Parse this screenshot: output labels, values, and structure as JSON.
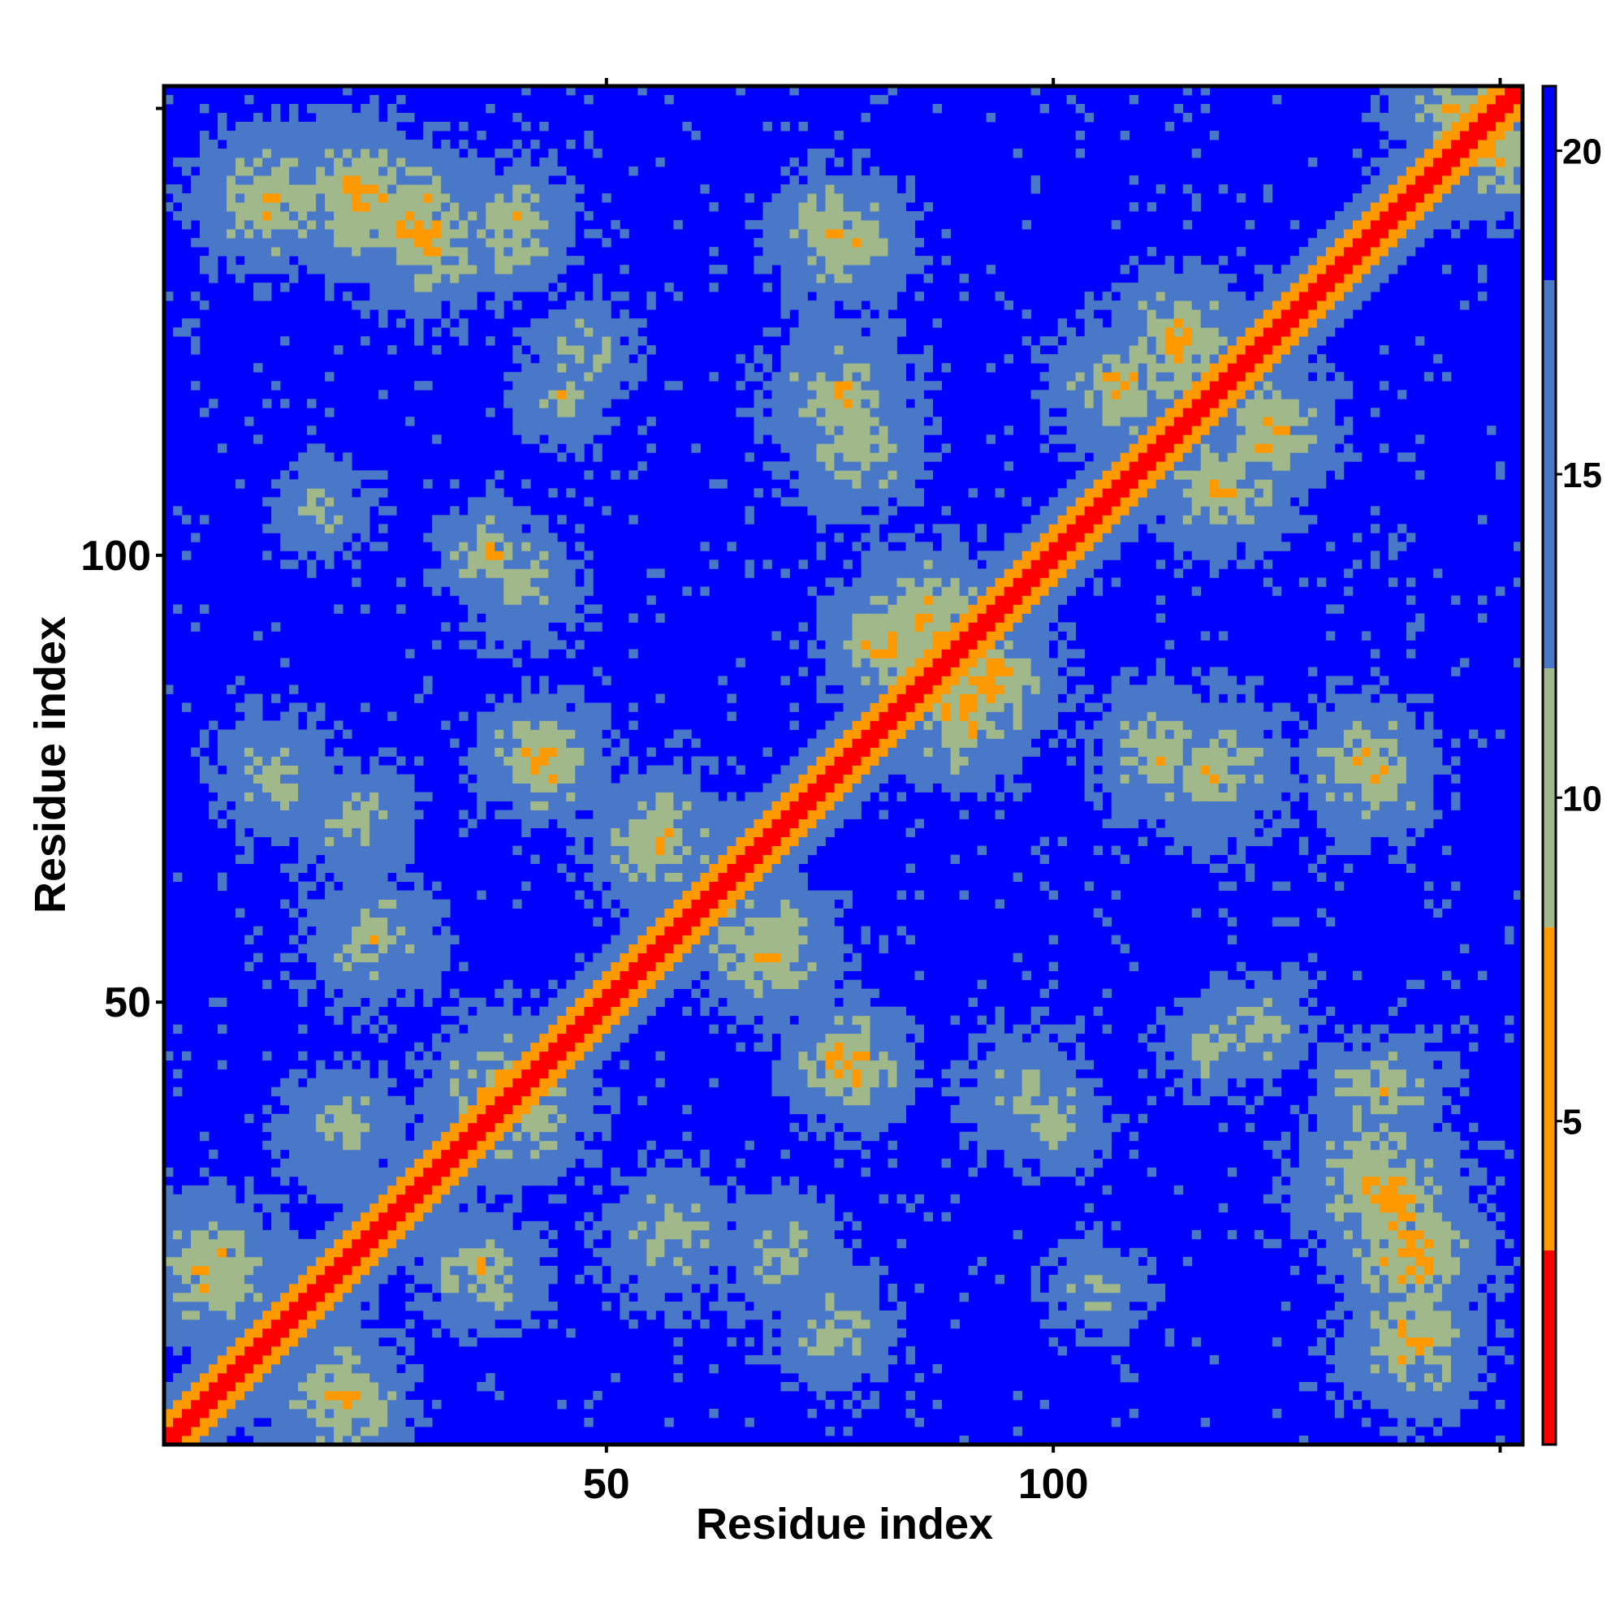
{
  "chart_data": {
    "type": "heatmap",
    "title": "",
    "xlabel": "Residue index",
    "ylabel": "Residue index",
    "n_residues": 152,
    "xlim": [
      1,
      152
    ],
    "ylim": [
      1,
      152
    ],
    "x_ticks": [
      50,
      100
    ],
    "y_ticks": [
      50,
      100
    ],
    "colorbar": {
      "ticks": [
        5,
        10,
        15,
        20
      ],
      "range": [
        0,
        21
      ],
      "cutoff": 8,
      "colors": {
        "near": "#ff0000",
        "mid": "#ff9900",
        "far_low": "#a0b88a",
        "far_high": "#4a78c8",
        "background": "#0000ff"
      }
    },
    "description_values": {
      "diagonal_distance": 0,
      "background_distance": 21
    },
    "contact_blobs": [
      {
        "i": 12,
        "j": 140,
        "r": 9,
        "d": 9
      },
      {
        "i": 28,
        "j": 138,
        "r": 8,
        "d": 8
      },
      {
        "i": 40,
        "j": 138,
        "r": 7,
        "d": 10
      },
      {
        "i": 47,
        "j": 123,
        "r": 8,
        "d": 11
      },
      {
        "i": 37,
        "j": 100,
        "r": 7,
        "d": 10
      },
      {
        "i": 22,
        "j": 70,
        "r": 9,
        "d": 11
      },
      {
        "i": 42,
        "j": 78,
        "r": 7,
        "d": 9
      },
      {
        "i": 6,
        "j": 20,
        "r": 9,
        "d": 9
      },
      {
        "i": 20,
        "j": 36,
        "r": 8,
        "d": 10
      },
      {
        "i": 38,
        "j": 40,
        "r": 9,
        "d": 9
      },
      {
        "i": 57,
        "j": 24,
        "r": 10,
        "d": 11
      },
      {
        "i": 75,
        "j": 13,
        "r": 9,
        "d": 11
      },
      {
        "i": 68,
        "j": 56,
        "r": 9,
        "d": 9
      },
      {
        "i": 77,
        "j": 43,
        "r": 7,
        "d": 8
      },
      {
        "i": 78,
        "j": 112,
        "r": 9,
        "d": 10
      },
      {
        "i": 77,
        "j": 135,
        "r": 8,
        "d": 9
      },
      {
        "i": 82,
        "j": 90,
        "r": 8,
        "d": 8
      },
      {
        "i": 93,
        "j": 86,
        "r": 8,
        "d": 8
      },
      {
        "i": 97,
        "j": 40,
        "r": 9,
        "d": 11
      },
      {
        "i": 108,
        "j": 119,
        "r": 9,
        "d": 9
      },
      {
        "i": 124,
        "j": 114,
        "r": 8,
        "d": 8
      },
      {
        "i": 118,
        "j": 76,
        "r": 10,
        "d": 10
      },
      {
        "i": 136,
        "j": 30,
        "r": 10,
        "d": 9
      },
      {
        "i": 140,
        "j": 22,
        "r": 9,
        "d": 8
      },
      {
        "i": 135,
        "j": 40,
        "r": 7,
        "d": 10
      },
      {
        "i": 136,
        "j": 75,
        "r": 8,
        "d": 9
      },
      {
        "i": 150,
        "j": 145,
        "r": 9,
        "d": 10
      },
      {
        "i": 105,
        "j": 18,
        "r": 8,
        "d": 12
      },
      {
        "i": 118,
        "j": 45,
        "r": 7,
        "d": 11
      }
    ]
  }
}
